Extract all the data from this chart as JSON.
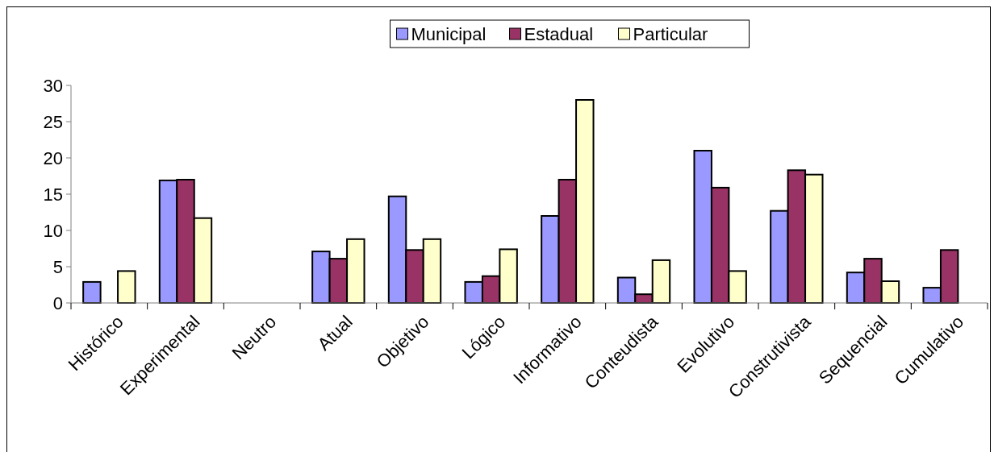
{
  "chart_data": {
    "type": "bar",
    "categories": [
      "Histórico",
      "Experimental",
      "Neutro",
      "Atual",
      "Objetivo",
      "Lógico",
      "Informativo",
      "Conteudista",
      "Evolutivo",
      "Construtivista",
      "Sequencial",
      "Cumulativo"
    ],
    "series": [
      {
        "name": "Municipal",
        "color": "#9999ff",
        "values": [
          2.9,
          16.9,
          0,
          7.1,
          14.7,
          2.9,
          12.0,
          3.5,
          21.0,
          12.7,
          4.2,
          2.1
        ]
      },
      {
        "name": "Estadual",
        "color": "#993366",
        "values": [
          0,
          17.0,
          0,
          6.1,
          7.3,
          3.7,
          17.0,
          1.2,
          15.9,
          18.3,
          6.1,
          7.3
        ]
      },
      {
        "name": "Particular",
        "color": "#ffffcc",
        "values": [
          4.4,
          11.7,
          0,
          8.8,
          8.8,
          7.4,
          28.0,
          5.9,
          4.4,
          17.7,
          3.0,
          0
        ]
      }
    ],
    "ylim": [
      0,
      30
    ],
    "yticks": [
      0,
      5,
      10,
      15,
      20,
      25,
      30
    ],
    "grid": false,
    "legend": "top"
  }
}
